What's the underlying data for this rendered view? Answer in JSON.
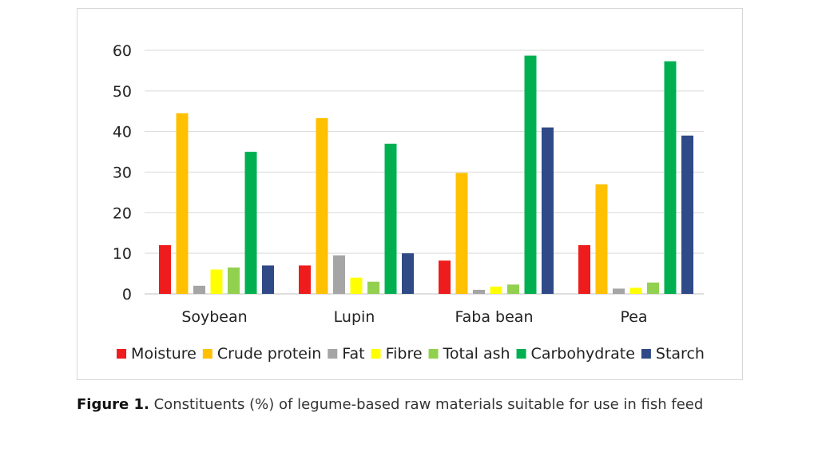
{
  "chart_data": {
    "type": "bar",
    "title": "",
    "xlabel": "",
    "ylabel": "",
    "categories": [
      "Soybean",
      "Lupin",
      "Faba bean",
      "Pea"
    ],
    "ylim": [
      0,
      60
    ],
    "yticks": [
      "0",
      "10",
      "20",
      "30",
      "40",
      "50",
      "60"
    ],
    "grid": true,
    "legend_position": "bottom",
    "series": [
      {
        "name": "Moisture",
        "color": "#ee1c1c",
        "values": [
          12,
          7,
          8.2,
          12
        ]
      },
      {
        "name": "Crude protein",
        "color": "#ffc000",
        "values": [
          44.5,
          43.3,
          29.8,
          27
        ]
      },
      {
        "name": "Fat",
        "color": "#a5a5a5",
        "values": [
          2,
          9.5,
          1,
          1.3
        ]
      },
      {
        "name": "Fibre",
        "color": "#ffff00",
        "values": [
          6,
          4,
          1.8,
          1.5
        ]
      },
      {
        "name": "Total ash",
        "color": "#92d050",
        "values": [
          6.5,
          3,
          2.3,
          2.8
        ]
      },
      {
        "name": "Carbohydrate",
        "color": "#00b050",
        "values": [
          35,
          37,
          58.7,
          57.3
        ]
      },
      {
        "name": "Starch",
        "color": "#2f4a87",
        "values": [
          7,
          10,
          41,
          39
        ]
      }
    ]
  },
  "caption": {
    "label": "Figure 1.",
    "text": " Constituents (%) of legume-based raw materials suitable for use in fish feed"
  }
}
